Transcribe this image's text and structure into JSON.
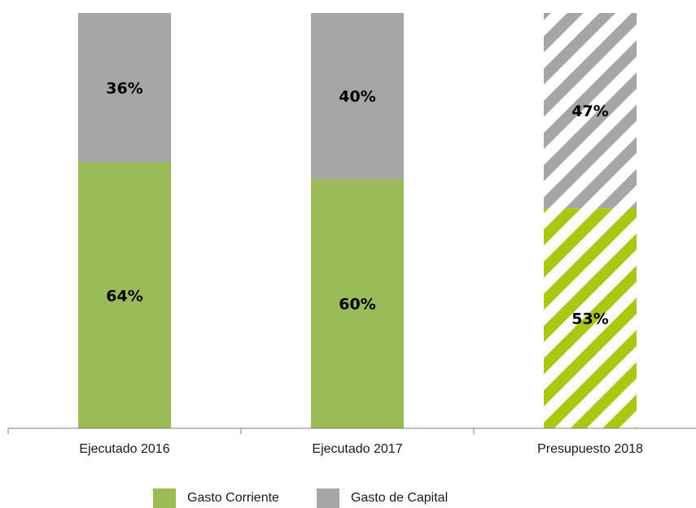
{
  "chart_data": {
    "type": "bar",
    "stacked": true,
    "categories": [
      "Ejecutado 2016",
      "Ejecutado 2017",
      "Presupuesto 2018"
    ],
    "series": [
      {
        "name": "Gasto Corriente",
        "values": [
          64,
          60,
          53
        ],
        "labels": [
          "64%",
          "60%",
          "53%"
        ]
      },
      {
        "name": "Gasto de Capital",
        "values": [
          36,
          40,
          47
        ],
        "labels": [
          "36%",
          "40%",
          "47%"
        ]
      }
    ],
    "hatched_categories": [
      "Presupuesto 2018"
    ],
    "ylim": [
      0,
      100
    ],
    "grid": false,
    "legend_position": "bottom"
  },
  "colors": {
    "corriente": "#9bbb59",
    "capital": "#a6a6a6",
    "corriente_hatch": "#a8c814",
    "axis": "#808080",
    "label": "#000000"
  }
}
